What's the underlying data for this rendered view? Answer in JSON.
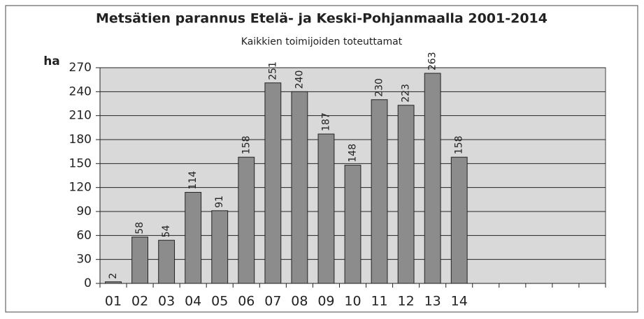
{
  "chart_data": {
    "type": "bar",
    "title": "Metsätien parannus Etelä- ja Keski-Pohjanmaalla 2001-2014",
    "subtitle": "Kaikkien toimijoiden toteuttamat",
    "y_axis_label": "ha",
    "categories": [
      "01",
      "02",
      "03",
      "04",
      "05",
      "06",
      "07",
      "08",
      "09",
      "10",
      "11",
      "12",
      "13",
      "14",
      null,
      null,
      null,
      null,
      null
    ],
    "values": [
      2,
      58,
      54,
      114,
      91,
      158,
      251,
      240,
      187,
      148,
      230,
      223,
      263,
      158,
      null,
      null,
      null,
      null,
      null
    ],
    "color": "#8c8c8c",
    "ylim": [
      0,
      270
    ],
    "yticks": [
      0,
      30,
      60,
      90,
      120,
      150,
      180,
      210,
      240,
      270
    ],
    "grid": true
  }
}
